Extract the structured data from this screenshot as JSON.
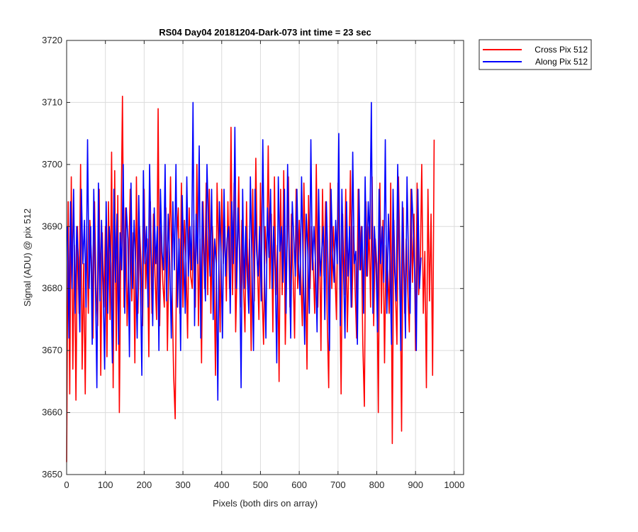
{
  "chart_data": {
    "type": "line",
    "title": "RS04 Day04 20181204-Dark-073 int time = 23 sec",
    "xlabel": "Pixels (both dirs on array)",
    "ylabel": "Signal (ADU) @ pix 512",
    "xlim": [
      0,
      1024
    ],
    "ylim": [
      3650,
      3720
    ],
    "x_ticks": [
      0,
      100,
      200,
      300,
      400,
      500,
      600,
      700,
      800,
      900,
      1000
    ],
    "y_ticks": [
      3650,
      3660,
      3670,
      3680,
      3690,
      3700,
      3710,
      3720
    ],
    "grid": true,
    "legend_position": "outside-top-right",
    "series": [
      {
        "name": "Cross Pix 512",
        "color": "#ff0000",
        "x_start": 0,
        "x_step": 4,
        "values": [
          3652,
          3694,
          3663,
          3698,
          3667,
          3687,
          3662,
          3690,
          3676,
          3700,
          3667,
          3684,
          3663,
          3690,
          3676,
          3691,
          3685,
          3672,
          3694,
          3680,
          3674,
          3696,
          3666,
          3689,
          3677,
          3690,
          3669,
          3694,
          3675,
          3702,
          3664,
          3699,
          3670,
          3695,
          3660,
          3688,
          3711,
          3677,
          3693,
          3674,
          3684,
          3696,
          3678,
          3689,
          3668,
          3698,
          3676,
          3690,
          3684,
          3674,
          3696,
          3680,
          3688,
          3669,
          3694,
          3676,
          3692,
          3682,
          3675,
          3709,
          3674,
          3690,
          3681,
          3677,
          3693,
          3670,
          3686,
          3698,
          3680,
          3666,
          3659,
          3688,
          3693,
          3676,
          3697,
          3677,
          3691,
          3684,
          3672,
          3693,
          3682,
          3680,
          3691,
          3677,
          3700,
          3674,
          3688,
          3668,
          3694,
          3680,
          3697,
          3679,
          3696,
          3676,
          3690,
          3683,
          3666,
          3697,
          3686,
          3673,
          3696,
          3684,
          3690,
          3678,
          3694,
          3680,
          3706,
          3679,
          3697,
          3673,
          3684,
          3698,
          3677,
          3691,
          3681,
          3673,
          3694,
          3680,
          3688,
          3670,
          3696,
          3678,
          3701,
          3684,
          3675,
          3697,
          3680,
          3671,
          3690,
          3684,
          3703,
          3680,
          3692,
          3673,
          3698,
          3679,
          3687,
          3665,
          3696,
          3679,
          3699,
          3671,
          3684,
          3698,
          3677,
          3692,
          3683,
          3672,
          3696,
          3680,
          3691,
          3682,
          3674,
          3697,
          3684,
          3667,
          3695,
          3680,
          3690,
          3684,
          3676,
          3700,
          3677,
          3690,
          3670,
          3696,
          3682,
          3694,
          3676,
          3664,
          3697,
          3680,
          3690,
          3683,
          3675,
          3697,
          3684,
          3663,
          3692,
          3679,
          3696,
          3673,
          3684,
          3699,
          3677,
          3690,
          3680,
          3672,
          3696,
          3683,
          3690,
          3671,
          3661,
          3694,
          3682,
          3690,
          3677,
          3698,
          3674,
          3688,
          3684,
          3660,
          3697,
          3676,
          3691,
          3668,
          3687,
          3683,
          3676,
          3697,
          3655,
          3691,
          3680,
          3671,
          3698,
          3684,
          3657,
          3693,
          3676,
          3688,
          3680,
          3673,
          3696,
          3681,
          3692,
          3670,
          3697,
          3679,
          3683,
          3700,
          3676,
          3686,
          3664,
          3696,
          3678,
          3692,
          3666,
          3704
        ]
      },
      {
        "name": "Along Pix 512",
        "color": "#0000ff",
        "x_start": 2,
        "x_step": 4,
        "values": [
          3690,
          3672,
          3694,
          3680,
          3696,
          3676,
          3690,
          3685,
          3673,
          3696,
          3684,
          3691,
          3677,
          3704,
          3680,
          3690,
          3671,
          3696,
          3682,
          3664,
          3697,
          3678,
          3691,
          3681,
          3667,
          3694,
          3676,
          3690,
          3684,
          3668,
          3696,
          3681,
          3692,
          3671,
          3689,
          3683,
          3700,
          3676,
          3693,
          3688,
          3669,
          3697,
          3680,
          3691,
          3684,
          3672,
          3695,
          3682,
          3666,
          3699,
          3684,
          3690,
          3677,
          3700,
          3686,
          3674,
          3693,
          3684,
          3690,
          3670,
          3696,
          3686,
          3683,
          3700,
          3678,
          3692,
          3684,
          3672,
          3694,
          3683,
          3700,
          3677,
          3688,
          3670,
          3695,
          3686,
          3676,
          3698,
          3682,
          3690,
          3683,
          3710,
          3674,
          3692,
          3684,
          3703,
          3672,
          3694,
          3686,
          3678,
          3700,
          3690,
          3682,
          3696,
          3675,
          3688,
          3684,
          3662,
          3694,
          3686,
          3672,
          3696,
          3682,
          3688,
          3690,
          3676,
          3694,
          3684,
          3706,
          3680,
          3693,
          3686,
          3664,
          3696,
          3680,
          3690,
          3682,
          3676,
          3698,
          3684,
          3670,
          3696,
          3686,
          3682,
          3690,
          3678,
          3704,
          3684,
          3672,
          3693,
          3685,
          3696,
          3680,
          3690,
          3683,
          3668,
          3698,
          3686,
          3690,
          3681,
          3696,
          3676,
          3700,
          3685,
          3672,
          3694,
          3688,
          3682,
          3696,
          3684,
          3679,
          3698,
          3684,
          3671,
          3692,
          3686,
          3676,
          3704,
          3683,
          3690,
          3684,
          3673,
          3696,
          3682,
          3686,
          3690,
          3675,
          3694,
          3684,
          3670,
          3696,
          3686,
          3681,
          3691,
          3684,
          3705,
          3674,
          3696,
          3684,
          3672,
          3694,
          3682,
          3690,
          3677,
          3702,
          3684,
          3686,
          3671,
          3696,
          3683,
          3690,
          3676,
          3698,
          3682,
          3694,
          3688,
          3710,
          3676,
          3690,
          3684,
          3673,
          3696,
          3684,
          3690,
          3681,
          3704,
          3676,
          3692,
          3684,
          3671,
          3696,
          3683,
          3678,
          3700,
          3686,
          3670,
          3694,
          3684,
          3672,
          3698,
          3684,
          3676,
          3696,
          3690,
          3682,
          3670,
          3696,
          3680,
          3685
        ]
      }
    ]
  }
}
